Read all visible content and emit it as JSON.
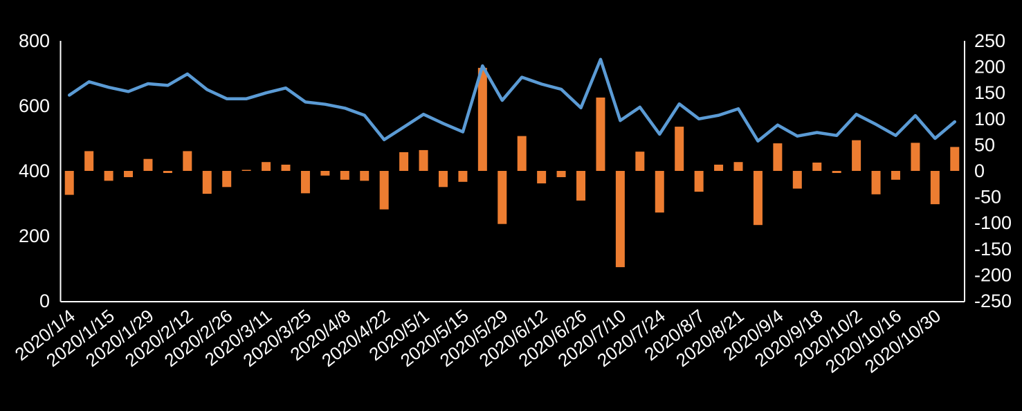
{
  "chart_data": {
    "type": "combo",
    "title": "",
    "legend": "none",
    "grid": "off",
    "background_color": "#000000",
    "text_color": "#FFFFFF",
    "axis_color": "#FFFFFF",
    "n_points": 46,
    "x_label_every": 2,
    "x_tick_labels": [
      "2020/1/4",
      "2020/1/15",
      "2020/1/29",
      "2020/2/12",
      "2020/2/26",
      "2020/3/11",
      "2020/3/25",
      "2020/4/8",
      "2020/4/22",
      "2020/5/1",
      "2020/5/15",
      "2020/5/29",
      "2020/6/12",
      "2020/6/26",
      "2020/7/10",
      "2020/7/24",
      "2020/8/7",
      "2020/8/21",
      "2020/9/4",
      "2020/9/18",
      "2020/10/2",
      "2020/10/16",
      "2020/10/30"
    ],
    "left_axis": {
      "min": 0,
      "max": 800,
      "ticks": [
        "800",
        "600",
        "400",
        "200",
        "0"
      ]
    },
    "right_axis": {
      "min": -250,
      "max": 250,
      "ticks": [
        "250",
        "200",
        "150",
        "100",
        "50",
        "0",
        "-50",
        "-100",
        "-150",
        "-200",
        "-250"
      ]
    },
    "series": [
      {
        "name": "line-series-left-axis",
        "type": "line",
        "axis": "left",
        "color": "#5B9BD5",
        "values": [
          633,
          674,
          657,
          644,
          668,
          663,
          698,
          650,
          622,
          622,
          640,
          655,
          612,
          605,
          593,
          571,
          496,
          535,
          574,
          546,
          520,
          723,
          617,
          688,
          667,
          651,
          594,
          743,
          555,
          596,
          513,
          606,
          560,
          571,
          591,
          492,
          541,
          507,
          518,
          509,
          574,
          543,
          509,
          570,
          500,
          551
        ]
      },
      {
        "name": "bar-series-right-axis",
        "type": "bar",
        "axis": "right",
        "color": "#ED7D31",
        "values": [
          -46,
          38,
          -19,
          -12,
          23,
          -4,
          38,
          -44,
          -31,
          2,
          17,
          12,
          -43,
          -9,
          -17,
          -19,
          -74,
          36,
          40,
          -31,
          -21,
          198,
          -102,
          67,
          -24,
          -12,
          -57,
          141,
          -185,
          37,
          -80,
          85,
          -40,
          12,
          17,
          -104,
          53,
          -34,
          16,
          -4,
          59,
          -45,
          -17,
          54,
          -64,
          46
        ]
      }
    ]
  }
}
